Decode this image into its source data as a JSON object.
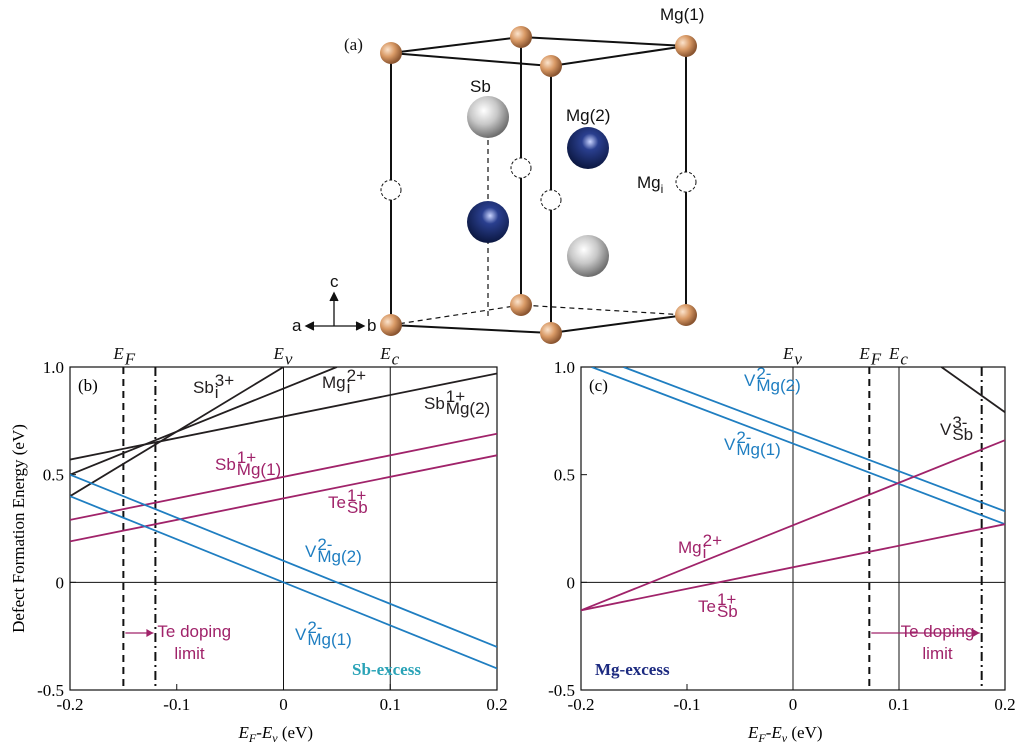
{
  "structure": {
    "panel": "(a)",
    "labels": {
      "mg1": "Mg(1)",
      "sb": "Sb",
      "mg2": "Mg(2)",
      "mgi": {
        "text": "Mg",
        "sub": "i"
      }
    },
    "axes": {
      "a": "a",
      "b": "b",
      "c": "c"
    }
  },
  "chart_data": [
    {
      "type": "line",
      "panel": "(b)",
      "ylabel": "Defect Formation Energy (eV)",
      "xlabel": [
        "E",
        "F",
        "-E",
        "v",
        " (eV)"
      ],
      "xlim": [
        -0.2,
        0.2
      ],
      "ylim": [
        -0.5,
        1.0
      ],
      "xticks": [
        -0.2,
        -0.1,
        0,
        0.1,
        0.2
      ],
      "yticks": [
        -0.5,
        0,
        0.5,
        {
          "value": 1.0,
          "label": "1.0"
        }
      ],
      "vlines": [
        {
          "x": -0.15,
          "style": "dashed",
          "label": {
            "text": "E",
            "sub": "F"
          }
        },
        {
          "x": -0.12,
          "style": "dashdot"
        },
        {
          "x": 0,
          "style": "solid",
          "label": {
            "text": "E",
            "sub": "v"
          }
        },
        {
          "x": 0.1,
          "style": "solid",
          "label": {
            "text": "E",
            "sub": "c"
          }
        }
      ],
      "series": [
        {
          "label": {
            "text": "Sb",
            "sub": "i",
            "sup": "3+"
          },
          "color": "#231f20",
          "x": [
            -0.2,
            0.0
          ],
          "values": [
            0.4,
            1.0
          ]
        },
        {
          "label": {
            "text": "Mg",
            "sub": "i",
            "sup": "2+"
          },
          "color": "#231f20",
          "x": [
            -0.2,
            0.05
          ],
          "values": [
            0.5,
            1.0
          ]
        },
        {
          "label": {
            "text": "Sb",
            "sub": "Mg(2)",
            "sup": "1+"
          },
          "color": "#231f20",
          "x": [
            -0.2,
            0.2
          ],
          "values": [
            0.57,
            0.97
          ]
        },
        {
          "label": {
            "text": "Sb",
            "sub": "Mg(1)",
            "sup": "1+"
          },
          "color": "#a0236a",
          "x": [
            -0.2,
            0.2
          ],
          "values": [
            0.29,
            0.69
          ]
        },
        {
          "label": {
            "text": "Te",
            "sub": "Sb",
            "sup": "1+"
          },
          "color": "#a0236a",
          "x": [
            -0.2,
            0.2
          ],
          "values": [
            0.19,
            0.59
          ]
        },
        {
          "label": {
            "text": "V",
            "sub": "Mg(2)",
            "sup": "2-"
          },
          "color": "#1f7ec1",
          "x": [
            -0.2,
            0.2
          ],
          "values": [
            0.5,
            -0.3
          ]
        },
        {
          "label": {
            "text": "V",
            "sub": "Mg(1)",
            "sup": "2-"
          },
          "color": "#1f7ec1",
          "x": [
            -0.2,
            0.2
          ],
          "values": [
            0.4,
            -0.4
          ]
        }
      ],
      "note": {
        "text": "Sb-excess",
        "color": "#2aa3b7"
      },
      "limit": [
        "Te doping",
        "limit"
      ]
    },
    {
      "type": "line",
      "panel": "(c)",
      "xlabel": [
        "E",
        "F",
        "-E",
        "v",
        " (eV)"
      ],
      "xlim": [
        -0.2,
        0.2
      ],
      "ylim": [
        -0.5,
        1.0
      ],
      "xticks": [
        -0.2,
        -0.1,
        0,
        0.1,
        0.2
      ],
      "yticks": [
        -0.5,
        0,
        0.5,
        {
          "value": 1.0,
          "label": "1.0"
        }
      ],
      "vlines": [
        {
          "x": 0,
          "style": "solid",
          "label": {
            "text": "E",
            "sub": "v"
          }
        },
        {
          "x": 0.072,
          "style": "dashed",
          "label": {
            "text": "E",
            "sub": "F"
          }
        },
        {
          "x": 0.1,
          "style": "solid",
          "label": {
            "text": "E",
            "sub": "c"
          }
        },
        {
          "x": 0.178,
          "style": "dashdot"
        }
      ],
      "series": [
        {
          "label": {
            "text": "V",
            "sub": "Mg(2)",
            "sup": "2-"
          },
          "color": "#1f7ec1",
          "x": [
            -0.16,
            0.2
          ],
          "values": [
            1.0,
            0.33
          ]
        },
        {
          "label": {
            "text": "V",
            "sub": "Mg(1)",
            "sup": "2-"
          },
          "color": "#1f7ec1",
          "x": [
            -0.19,
            0.2
          ],
          "values": [
            1.0,
            0.27
          ]
        },
        {
          "label": {
            "text": "V",
            "sub": "Sb",
            "sup": "3-"
          },
          "color": "#231f20",
          "x": [
            0.14,
            0.2
          ],
          "values": [
            1.0,
            0.79
          ]
        },
        {
          "label": {
            "text": "Mg",
            "sub": "i",
            "sup": "2+"
          },
          "color": "#a0236a",
          "x": [
            -0.2,
            0.2
          ],
          "values": [
            -0.13,
            0.66
          ]
        },
        {
          "label": {
            "text": "Te",
            "sub": "Sb",
            "sup": "1+"
          },
          "color": "#a0236a",
          "x": [
            -0.2,
            0.2
          ],
          "values": [
            -0.13,
            0.27
          ]
        }
      ],
      "note": {
        "text": "Mg-excess",
        "color": "#1c2a80"
      },
      "limit": [
        "Te doping",
        "limit"
      ]
    }
  ]
}
